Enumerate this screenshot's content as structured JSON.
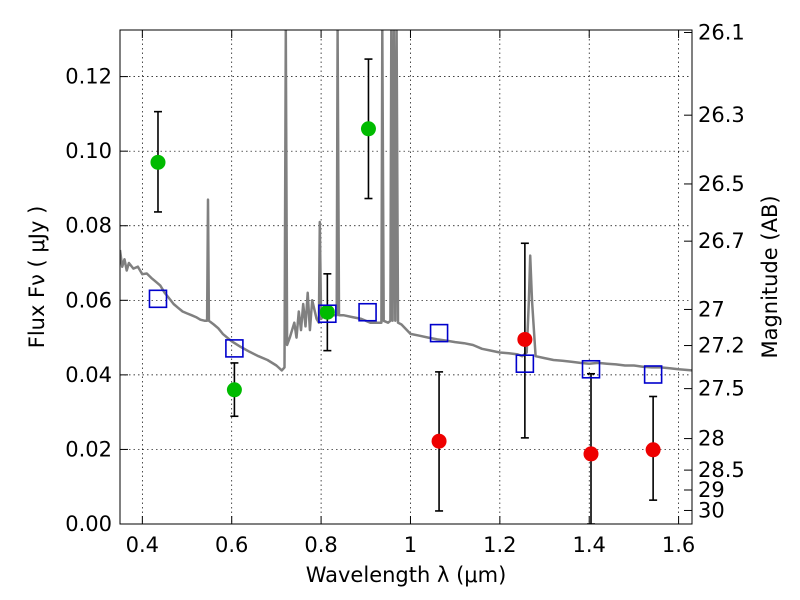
{
  "chart_data": {
    "type": "scatter",
    "xlabel": "Wavelength  λ (μm)",
    "ylabel": "Flux  Fν  ( μJy )",
    "y2label": "Magnitude (AB)",
    "xlim": [
      0.35,
      1.63
    ],
    "ylim": [
      0.0,
      0.1325
    ],
    "grid": true,
    "x_ticks": [
      0.4,
      0.6,
      0.8,
      1.0,
      1.2,
      1.4,
      1.6
    ],
    "x_tick_labels": [
      "0.4",
      "0.6",
      "0.8",
      "1",
      "1.2",
      "1.4",
      "1.6"
    ],
    "y_ticks": [
      0.0,
      0.02,
      0.04,
      0.06,
      0.08,
      0.1,
      0.12
    ],
    "y_tick_labels": [
      "0.00",
      "0.02",
      "0.04",
      "0.06",
      "0.08",
      "0.10",
      "0.12"
    ],
    "y2_ticks": [
      {
        "label": "26.1",
        "value": 26.1
      },
      {
        "label": "26.3",
        "value": 26.3
      },
      {
        "label": "26.5",
        "value": 26.5
      },
      {
        "label": "26.7",
        "value": 26.7
      },
      {
        "label": "27",
        "value": 27.0
      },
      {
        "label": "27.2",
        "value": 27.2
      },
      {
        "label": "27.5",
        "value": 27.5
      },
      {
        "label": "28",
        "value": 28.0
      },
      {
        "label": "28.5",
        "value": 28.5
      },
      {
        "label": "29",
        "value": 29.0
      },
      {
        "label": "30",
        "value": 30.0
      }
    ],
    "series": [
      {
        "marker": "filled-circle",
        "color": "#00bb00",
        "points": [
          {
            "x": 0.435,
            "y": 0.097,
            "lo": 0.0837,
            "hi": 0.1106
          },
          {
            "x": 0.606,
            "y": 0.036,
            "lo": 0.0289,
            "hi": 0.0432
          },
          {
            "x": 0.814,
            "y": 0.0568,
            "lo": 0.0465,
            "hi": 0.0671
          },
          {
            "x": 0.906,
            "y": 0.106,
            "lo": 0.0873,
            "hi": 0.1247
          }
        ]
      },
      {
        "marker": "filled-circle",
        "color": "#ee0000",
        "points": [
          {
            "x": 1.064,
            "y": 0.0222,
            "lo": 0.0035,
            "hi": 0.0408
          },
          {
            "x": 1.256,
            "y": 0.0495,
            "lo": 0.0231,
            "hi": 0.0753
          },
          {
            "x": 1.404,
            "y": 0.0188,
            "lo": 0.0,
            "hi": 0.0403
          },
          {
            "x": 1.543,
            "y": 0.0199,
            "lo": 0.0064,
            "hi": 0.0342
          }
        ]
      },
      {
        "marker": "open-square",
        "color": "#0000cc",
        "points": [
          {
            "x": 0.435,
            "y": 0.0604
          },
          {
            "x": 0.606,
            "y": 0.0471
          },
          {
            "x": 0.814,
            "y": 0.0564
          },
          {
            "x": 0.904,
            "y": 0.0568
          },
          {
            "x": 1.064,
            "y": 0.0512
          },
          {
            "x": 1.256,
            "y": 0.043
          },
          {
            "x": 1.404,
            "y": 0.0415
          },
          {
            "x": 1.543,
            "y": 0.0401
          }
        ]
      }
    ],
    "model_spectrum": {
      "color": "#808080",
      "points": [
        [
          0.35,
          0.0735
        ],
        [
          0.355,
          0.069
        ],
        [
          0.36,
          0.071
        ],
        [
          0.365,
          0.068
        ],
        [
          0.37,
          0.07
        ],
        [
          0.38,
          0.0685
        ],
        [
          0.39,
          0.069
        ],
        [
          0.4,
          0.067
        ],
        [
          0.41,
          0.0672
        ],
        [
          0.42,
          0.066
        ],
        [
          0.43,
          0.065
        ],
        [
          0.44,
          0.064
        ],
        [
          0.45,
          0.062
        ],
        [
          0.46,
          0.0605
        ],
        [
          0.47,
          0.059
        ],
        [
          0.48,
          0.058
        ],
        [
          0.49,
          0.057
        ],
        [
          0.5,
          0.0565
        ],
        [
          0.51,
          0.056
        ],
        [
          0.52,
          0.0555
        ],
        [
          0.53,
          0.0548
        ],
        [
          0.54,
          0.0545
        ],
        [
          0.545,
          0.0545
        ],
        [
          0.547,
          0.087
        ],
        [
          0.549,
          0.0545
        ],
        [
          0.56,
          0.0535
        ],
        [
          0.57,
          0.0525
        ],
        [
          0.58,
          0.051
        ],
        [
          0.6,
          0.049
        ],
        [
          0.62,
          0.0475
        ],
        [
          0.64,
          0.0462
        ],
        [
          0.66,
          0.045
        ],
        [
          0.68,
          0.044
        ],
        [
          0.7,
          0.0425
        ],
        [
          0.712,
          0.0412
        ],
        [
          0.718,
          0.042
        ],
        [
          0.721,
          0.1325
        ],
        [
          0.724,
          0.048
        ],
        [
          0.73,
          0.05
        ],
        [
          0.74,
          0.054
        ],
        [
          0.745,
          0.05
        ],
        [
          0.75,
          0.057
        ],
        [
          0.755,
          0.052
        ],
        [
          0.76,
          0.059
        ],
        [
          0.765,
          0.053
        ],
        [
          0.77,
          0.062
        ],
        [
          0.775,
          0.052
        ],
        [
          0.78,
          0.06
        ],
        [
          0.79,
          0.055
        ],
        [
          0.795,
          0.054
        ],
        [
          0.797,
          0.081
        ],
        [
          0.8,
          0.055
        ],
        [
          0.81,
          0.0565
        ],
        [
          0.82,
          0.056
        ],
        [
          0.83,
          0.056
        ],
        [
          0.835,
          0.056
        ],
        [
          0.837,
          0.1325
        ],
        [
          0.84,
          0.056
        ],
        [
          0.85,
          0.056
        ],
        [
          0.87,
          0.0555
        ],
        [
          0.89,
          0.055
        ],
        [
          0.91,
          0.054
        ],
        [
          0.93,
          0.054
        ],
        [
          0.935,
          0.054
        ],
        [
          0.937,
          0.1325
        ],
        [
          0.94,
          0.0545
        ],
        [
          0.95,
          0.054
        ],
        [
          0.955,
          0.0545
        ],
        [
          0.957,
          0.1325
        ],
        [
          0.96,
          0.0545
        ],
        [
          0.963,
          0.1325
        ],
        [
          0.966,
          0.0545
        ],
        [
          0.969,
          0.1325
        ],
        [
          0.972,
          0.054
        ],
        [
          0.98,
          0.0535
        ],
        [
          1.0,
          0.051
        ],
        [
          1.02,
          0.0505
        ],
        [
          1.04,
          0.05
        ],
        [
          1.06,
          0.0495
        ],
        [
          1.08,
          0.0492
        ],
        [
          1.1,
          0.0488
        ],
        [
          1.12,
          0.0485
        ],
        [
          1.14,
          0.048
        ],
        [
          1.16,
          0.047
        ],
        [
          1.18,
          0.0465
        ],
        [
          1.2,
          0.046
        ],
        [
          1.22,
          0.0458
        ],
        [
          1.24,
          0.0455
        ],
        [
          1.25,
          0.045
        ],
        [
          1.26,
          0.046
        ],
        [
          1.265,
          0.06
        ],
        [
          1.268,
          0.072
        ],
        [
          1.272,
          0.06
        ],
        [
          1.28,
          0.045
        ],
        [
          1.3,
          0.0445
        ],
        [
          1.32,
          0.044
        ],
        [
          1.34,
          0.0438
        ],
        [
          1.36,
          0.0435
        ],
        [
          1.38,
          0.0432
        ],
        [
          1.4,
          0.043
        ],
        [
          1.42,
          0.0432
        ],
        [
          1.44,
          0.043
        ],
        [
          1.46,
          0.0428
        ],
        [
          1.48,
          0.0425
        ],
        [
          1.5,
          0.0425
        ],
        [
          1.52,
          0.0422
        ],
        [
          1.54,
          0.042
        ],
        [
          1.56,
          0.042
        ],
        [
          1.58,
          0.0418
        ],
        [
          1.6,
          0.0415
        ],
        [
          1.62,
          0.0413
        ],
        [
          1.63,
          0.0412
        ]
      ]
    }
  }
}
